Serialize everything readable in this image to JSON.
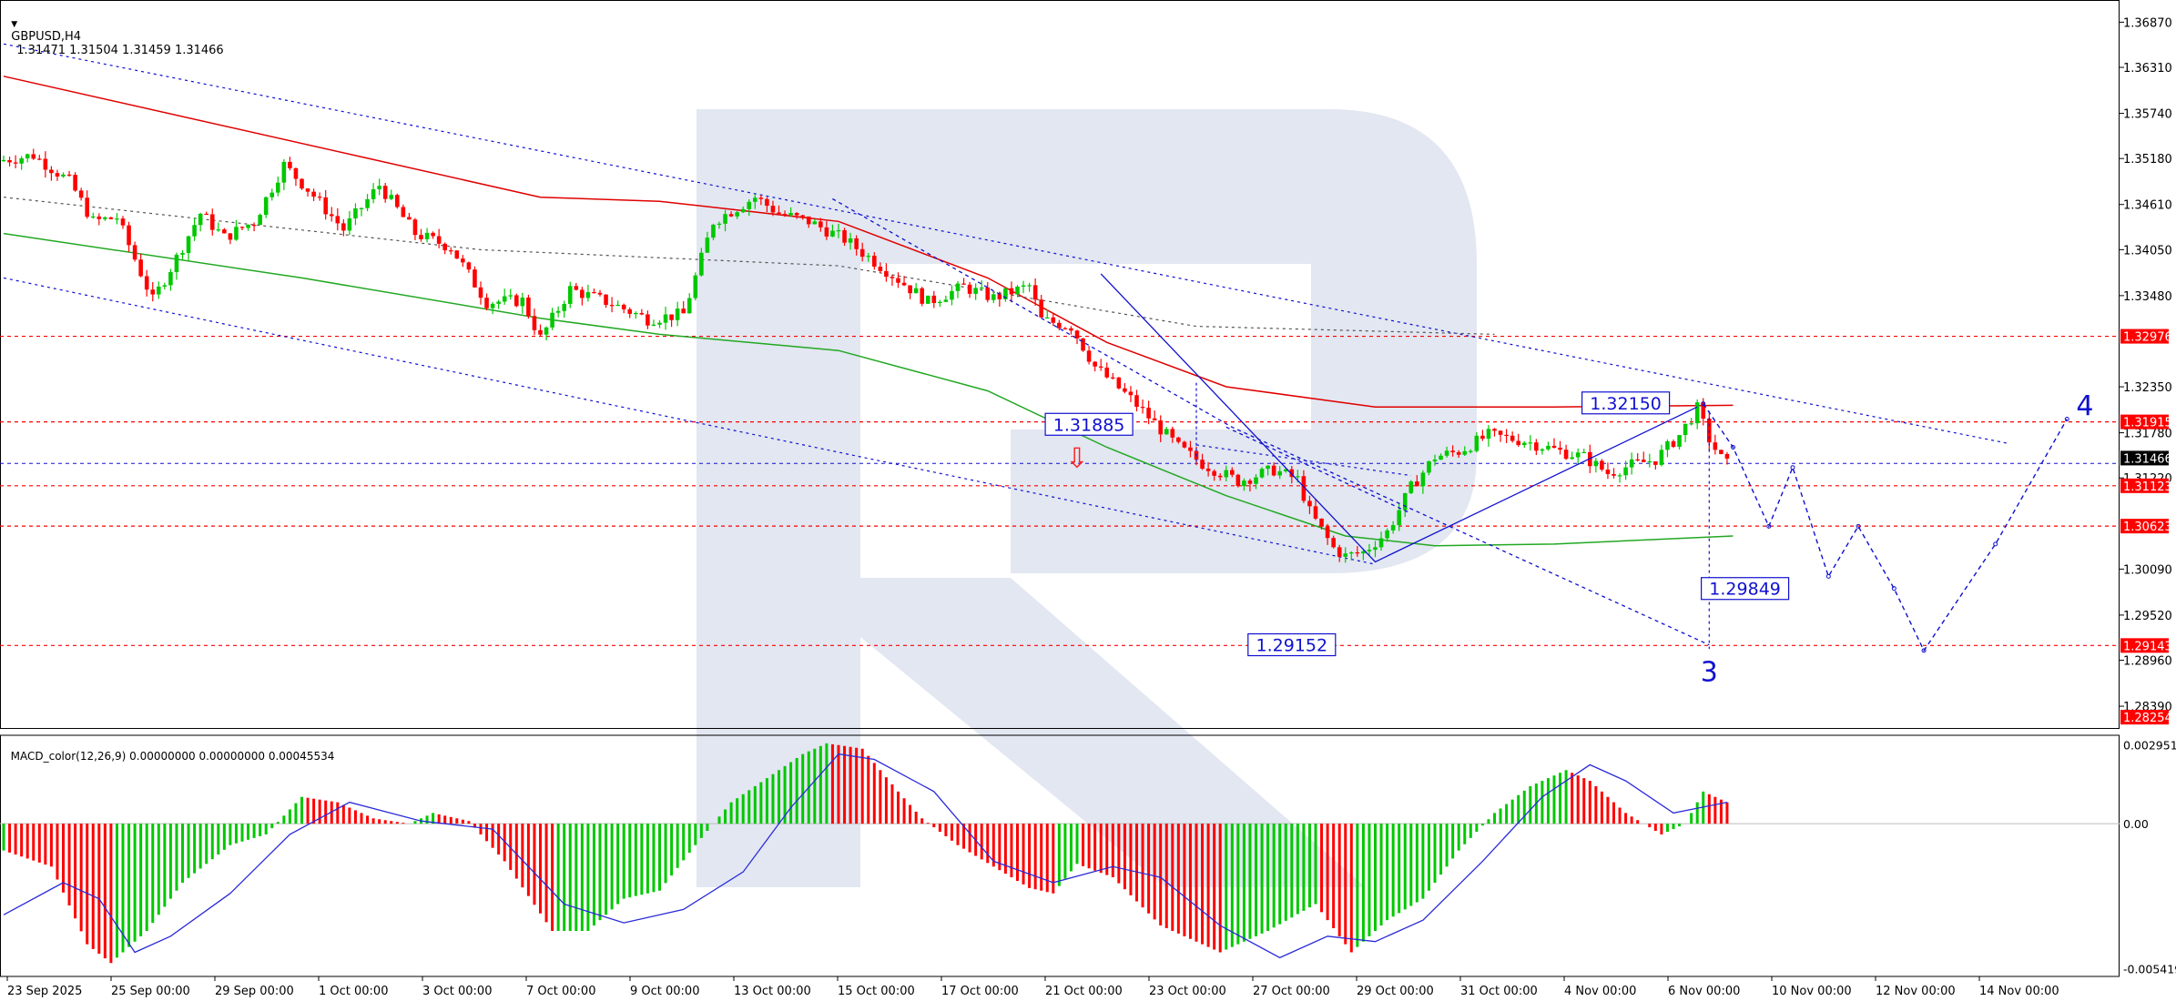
{
  "header": {
    "symbol": "GBPUSD,H4",
    "ohlc": "1.31471 1.31504 1.31459 1.31466",
    "macd_label": "MACD_color(12,26,9) 0.00000000 0.00000000 0.00045534"
  },
  "colors": {
    "bull": "#00c800",
    "bear": "#ff0000",
    "ma_red": "#e00000",
    "ma_green": "#22a822",
    "forecast_blue": "#1010d0",
    "hline_red": "#ff0000",
    "watermark": "#dde3ee",
    "macd_signal": "#2a2ad8"
  },
  "chart_data": {
    "type": "candlestick",
    "symbol": "GBPUSD",
    "timeframe": "H4",
    "price_axis": {
      "ylim": [
        1.2812,
        1.371
      ],
      "ticks": [
        "1.36870",
        "1.36310",
        "1.35740",
        "1.35180",
        "1.34610",
        "1.34050",
        "1.33480",
        "1.32350",
        "1.31780",
        "1.31220",
        "1.30090",
        "1.29520",
        "1.28960",
        "1.28390"
      ],
      "tags": [
        {
          "value": 1.32976,
          "label": "1.32976",
          "bg": "#ff0000",
          "fg": "#ffffff"
        },
        {
          "value": 1.31915,
          "label": "1.31915",
          "bg": "#ff0000",
          "fg": "#ffffff"
        },
        {
          "value": 1.31466,
          "label": "1.31466",
          "bg": "#000000",
          "fg": "#ffffff"
        },
        {
          "value": 1.31123,
          "label": "1.31123",
          "bg": "#ff0000",
          "fg": "#ffffff"
        },
        {
          "value": 1.30623,
          "label": "1.30623",
          "bg": "#ff0000",
          "fg": "#ffffff"
        },
        {
          "value": 1.29143,
          "label": "1.29143",
          "bg": "#ff0000",
          "fg": "#ffffff"
        },
        {
          "value": 1.28254,
          "label": "1.28254",
          "bg": "#ff0000",
          "fg": "#ffffff"
        }
      ]
    },
    "macd_axis": {
      "ylim": [
        -0.0057,
        0.0033
      ],
      "ticks": [
        "0.0029514",
        "0.00",
        "-0.0054195"
      ]
    },
    "time_axis": {
      "labels": [
        "23 Sep 2025",
        "25 Sep 00:00",
        "29 Sep 00:00",
        "1 Oct 00:00",
        "3 Oct 00:00",
        "7 Oct 00:00",
        "9 Oct 00:00",
        "13 Oct 00:00",
        "15 Oct 00:00",
        "17 Oct 00:00",
        "21 Oct 00:00",
        "23 Oct 00:00",
        "27 Oct 00:00",
        "29 Oct 00:00",
        "31 Oct 00:00",
        "4 Nov 00:00",
        "6 Nov 00:00",
        "10 Nov 00:00",
        "12 Nov 00:00",
        "14 Nov 00:00"
      ],
      "bars_visible": 232
    },
    "price_path": [
      [
        0,
        1.3515
      ],
      [
        6,
        1.3522
      ],
      [
        12,
        1.349
      ],
      [
        16,
        1.344
      ],
      [
        20,
        1.3445
      ],
      [
        26,
        1.3342
      ],
      [
        30,
        1.3395
      ],
      [
        34,
        1.345
      ],
      [
        38,
        1.342
      ],
      [
        43,
        1.344
      ],
      [
        48,
        1.351
      ],
      [
        52,
        1.348
      ],
      [
        58,
        1.343
      ],
      [
        64,
        1.3485
      ],
      [
        70,
        1.3425
      ],
      [
        76,
        1.3408
      ],
      [
        82,
        1.334
      ],
      [
        88,
        1.3342
      ],
      [
        91,
        1.3295
      ],
      [
        96,
        1.3356
      ],
      [
        103,
        1.3338
      ],
      [
        109,
        1.3319
      ],
      [
        115,
        1.3325
      ],
      [
        120,
        1.344
      ],
      [
        127,
        1.347
      ],
      [
        131,
        1.345
      ],
      [
        136,
        1.344
      ],
      [
        142,
        1.3418
      ],
      [
        148,
        1.3385
      ],
      [
        156,
        1.334
      ],
      [
        162,
        1.3359
      ],
      [
        167,
        1.3345
      ],
      [
        173,
        1.336
      ],
      [
        175,
        1.3318
      ],
      [
        180,
        1.331
      ],
      [
        184,
        1.326
      ],
      [
        190,
        1.322
      ],
      [
        198,
        1.316
      ],
      [
        202,
        1.314
      ],
      [
        208,
        1.3118
      ],
      [
        214,
        1.3132
      ],
      [
        218,
        1.312
      ],
      [
        220,
        1.308
      ],
      [
        224,
        1.3035
      ],
      [
        226,
        1.3025
      ],
      [
        229,
        1.303
      ],
      [
        233,
        1.3055
      ],
      [
        237,
        1.311
      ],
      [
        241,
        1.3148
      ],
      [
        245,
        1.3155
      ],
      [
        250,
        1.3175
      ],
      [
        256,
        1.3168
      ],
      [
        262,
        1.3155
      ],
      [
        266,
        1.3148
      ],
      [
        270,
        1.3128
      ],
      [
        274,
        1.3138
      ],
      [
        278,
        1.3145
      ],
      [
        282,
        1.3175
      ],
      [
        285,
        1.3208
      ],
      [
        287,
        1.317
      ],
      [
        289,
        1.3146
      ]
    ],
    "moving_averages": [
      {
        "color": "red",
        "points": [
          [
            0,
            1.362
          ],
          [
            60,
            1.352
          ],
          [
            90,
            1.347
          ],
          [
            110,
            1.3465
          ],
          [
            140,
            1.344
          ],
          [
            165,
            1.337
          ],
          [
            185,
            1.329
          ],
          [
            205,
            1.3235
          ],
          [
            230,
            1.321
          ],
          [
            260,
            1.321
          ],
          [
            290,
            1.3212
          ]
        ]
      },
      {
        "color": "green",
        "points": [
          [
            0,
            1.3425
          ],
          [
            50,
            1.337
          ],
          [
            90,
            1.332
          ],
          [
            110,
            1.33
          ],
          [
            140,
            1.328
          ],
          [
            165,
            1.323
          ],
          [
            185,
            1.316
          ],
          [
            205,
            1.31
          ],
          [
            225,
            1.305
          ],
          [
            240,
            1.3038
          ],
          [
            260,
            1.304
          ],
          [
            290,
            1.305
          ]
        ]
      }
    ],
    "channel_lines": [
      {
        "points": [
          [
            0,
            1.366
          ],
          [
            336,
            1.3165
          ]
        ]
      },
      {
        "points": [
          [
            0,
            1.337
          ],
          [
            230,
            1.3015
          ]
        ]
      },
      {
        "points": [
          [
            0,
            1.347
          ],
          [
            80,
            1.3405
          ],
          [
            140,
            1.3385
          ],
          [
            200,
            1.331
          ],
          [
            250,
            1.33
          ]
        ]
      },
      {
        "points": [
          [
            200,
            1.3163
          ],
          [
            236,
            1.3125
          ]
        ]
      }
    ],
    "wave_lines": [
      {
        "points": [
          [
            184,
            1.3375
          ],
          [
            230,
            1.3018
          ],
          [
            284,
            1.321
          ]
        ]
      },
      {
        "points": [
          [
            139,
            1.3468
          ],
          [
            206,
            1.3185
          ],
          [
            286,
            1.2915
          ]
        ]
      },
      {
        "points": [
          [
            205,
            1.3185
          ],
          [
            236,
            1.3078
          ]
        ]
      }
    ],
    "forecast_path": [
      [
        285,
        1.3214
      ],
      [
        290,
        1.316
      ],
      [
        296,
        1.3062
      ],
      [
        300,
        1.3135
      ],
      [
        306,
        1.3
      ],
      [
        311,
        1.3062
      ],
      [
        317,
        1.2985
      ],
      [
        322,
        1.2908
      ],
      [
        334,
        1.304
      ],
      [
        346,
        1.3195
      ]
    ],
    "level_lines": [
      1.32976,
      1.31915,
      1.31123,
      1.30623,
      1.29143
    ],
    "annotations": [
      {
        "text": "1.31885",
        "bar": 182,
        "price": 1.31885
      },
      {
        "text": "1.32150",
        "bar": 272,
        "price": 1.3215
      },
      {
        "text": "1.29849",
        "bar": 292,
        "price": 1.29849
      },
      {
        "text": "1.29152",
        "bar": 216,
        "price": 1.29152
      },
      {
        "text": "3",
        "bar": 286,
        "price": 1.287
      },
      {
        "text": "4",
        "bar": 349,
        "price": 1.32
      }
    ],
    "macd_path": [
      [
        0,
        -0.001
      ],
      [
        8,
        -0.0016
      ],
      [
        14,
        -0.0045
      ],
      [
        18,
        -0.0052
      ],
      [
        24,
        -0.004
      ],
      [
        30,
        -0.0022
      ],
      [
        38,
        -0.0008
      ],
      [
        44,
        -0.0004
      ],
      [
        50,
        0.001
      ],
      [
        56,
        0.0008
      ],
      [
        62,
        0.0002
      ],
      [
        68,
        0.0
      ],
      [
        72,
        0.0004
      ],
      [
        78,
        0.0001
      ],
      [
        84,
        -0.0014
      ],
      [
        92,
        -0.004
      ],
      [
        98,
        -0.004
      ],
      [
        104,
        -0.0028
      ],
      [
        110,
        -0.0025
      ],
      [
        116,
        -0.0008
      ],
      [
        122,
        0.0008
      ],
      [
        130,
        0.002
      ],
      [
        134,
        0.0026
      ],
      [
        138,
        0.003
      ],
      [
        144,
        0.0028
      ],
      [
        150,
        0.0012
      ],
      [
        154,
        0.0002
      ],
      [
        160,
        -0.0008
      ],
      [
        166,
        -0.0016
      ],
      [
        172,
        -0.0024
      ],
      [
        176,
        -0.0026
      ],
      [
        180,
        -0.0015
      ],
      [
        186,
        -0.002
      ],
      [
        194,
        -0.0038
      ],
      [
        204,
        -0.0048
      ],
      [
        212,
        -0.004
      ],
      [
        220,
        -0.003
      ],
      [
        226,
        -0.0048
      ],
      [
        232,
        -0.0036
      ],
      [
        238,
        -0.0028
      ],
      [
        244,
        -0.001
      ],
      [
        250,
        0.0004
      ],
      [
        256,
        0.0014
      ],
      [
        262,
        0.002
      ],
      [
        266,
        0.0016
      ],
      [
        272,
        0.0004
      ],
      [
        278,
        -0.0004
      ],
      [
        282,
        0.0
      ],
      [
        285,
        0.0012
      ],
      [
        289,
        0.0008
      ]
    ],
    "macd_signal": [
      [
        0,
        -0.0034
      ],
      [
        10,
        -0.0022
      ],
      [
        16,
        -0.0028
      ],
      [
        22,
        -0.0048
      ],
      [
        28,
        -0.0042
      ],
      [
        38,
        -0.0026
      ],
      [
        48,
        -0.0004
      ],
      [
        58,
        0.0008
      ],
      [
        70,
        0.0001
      ],
      [
        82,
        -0.0002
      ],
      [
        94,
        -0.003
      ],
      [
        104,
        -0.0037
      ],
      [
        114,
        -0.0032
      ],
      [
        124,
        -0.0018
      ],
      [
        132,
        0.0006
      ],
      [
        140,
        0.0026
      ],
      [
        146,
        0.0024
      ],
      [
        156,
        0.0012
      ],
      [
        166,
        -0.0014
      ],
      [
        176,
        -0.0022
      ],
      [
        186,
        -0.0016
      ],
      [
        194,
        -0.002
      ],
      [
        204,
        -0.0038
      ],
      [
        214,
        -0.005
      ],
      [
        222,
        -0.0042
      ],
      [
        230,
        -0.0044
      ],
      [
        238,
        -0.0036
      ],
      [
        248,
        -0.0014
      ],
      [
        258,
        0.001
      ],
      [
        266,
        0.0022
      ],
      [
        272,
        0.0016
      ],
      [
        280,
        0.0004
      ],
      [
        289,
        0.0008
      ]
    ],
    "watermark": "R"
  }
}
